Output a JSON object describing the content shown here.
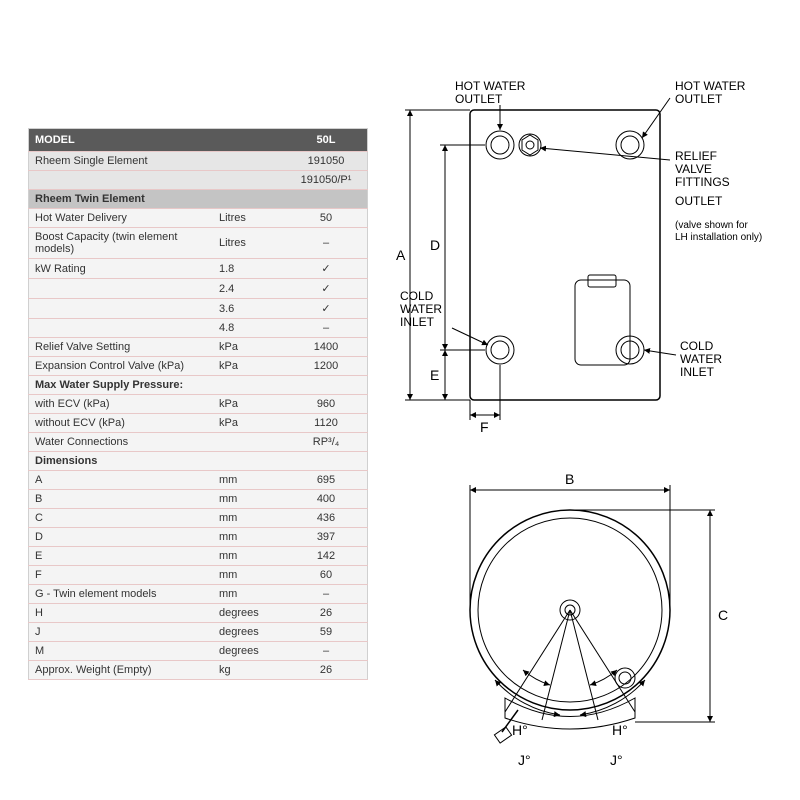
{
  "header": {
    "model": "MODEL",
    "col": "50L"
  },
  "rows": [
    {
      "type": "model",
      "label": "Rheem Single Element",
      "unit": "",
      "val": "191050"
    },
    {
      "type": "model",
      "label": "",
      "unit": "",
      "val": "191050/P¹"
    },
    {
      "type": "subhead",
      "label": "Rheem Twin Element",
      "unit": "",
      "val": ""
    },
    {
      "type": "data",
      "label": "Hot Water Delivery",
      "unit": "Litres",
      "val": "50"
    },
    {
      "type": "data",
      "label": "Boost Capacity (twin element models)",
      "unit": "Litres",
      "val": "–"
    },
    {
      "type": "data",
      "label": "kW Rating",
      "unit": "1.8",
      "val": "✓"
    },
    {
      "type": "data",
      "label": "",
      "unit": "2.4",
      "val": "✓"
    },
    {
      "type": "data",
      "label": "",
      "unit": "3.6",
      "val": "✓"
    },
    {
      "type": "data",
      "label": "",
      "unit": "4.8",
      "val": "–"
    },
    {
      "type": "data",
      "label": "Relief Valve Setting",
      "unit": "kPa",
      "val": "1400"
    },
    {
      "type": "data",
      "label": "Expansion Control Valve (kPa)",
      "unit": "kPa",
      "val": "1200"
    },
    {
      "type": "bold",
      "label": "Max Water Supply Pressure:",
      "unit": "",
      "val": ""
    },
    {
      "type": "data",
      "label": "with ECV (kPa)",
      "unit": "kPa",
      "val": "960"
    },
    {
      "type": "data",
      "label": "without ECV (kPa)",
      "unit": "kPa",
      "val": "1120"
    },
    {
      "type": "data",
      "label": "Water Connections",
      "unit": "",
      "val": "RP³/₄"
    },
    {
      "type": "bold",
      "label": "Dimensions",
      "unit": "",
      "val": ""
    },
    {
      "type": "data",
      "label": "A",
      "unit": "mm",
      "val": "695"
    },
    {
      "type": "data",
      "label": "B",
      "unit": "mm",
      "val": "400"
    },
    {
      "type": "data",
      "label": "C",
      "unit": "mm",
      "val": "436"
    },
    {
      "type": "data",
      "label": "D",
      "unit": "mm",
      "val": "397"
    },
    {
      "type": "data",
      "label": "E",
      "unit": "mm",
      "val": "142"
    },
    {
      "type": "data",
      "label": "F",
      "unit": "mm",
      "val": "60"
    },
    {
      "type": "data",
      "label": "G - Twin element models",
      "unit": "mm",
      "val": "–"
    },
    {
      "type": "data",
      "label": "H",
      "unit": "degrees",
      "val": "26"
    },
    {
      "type": "data",
      "label": "J",
      "unit": "degrees",
      "val": "59"
    },
    {
      "type": "data",
      "label": "M",
      "unit": "degrees",
      "val": "–"
    },
    {
      "type": "data",
      "label": "Approx. Weight (Empty)",
      "unit": "kg",
      "val": "26"
    }
  ],
  "labels": {
    "hot_outlet": "HOT WATER",
    "hot_outlet2": "OUTLET",
    "relief1": "RELIEF",
    "relief2": "VALVE",
    "relief3": "FITTINGS",
    "relief4": "OUTLET",
    "valve_note1": "(valve shown for",
    "valve_note2": "LH installation only)",
    "cold_inlet": "COLD",
    "cold_inlet2": "WATER",
    "cold_inlet3": "INLET",
    "A": "A",
    "B": "B",
    "C": "C",
    "D": "D",
    "E": "E",
    "F": "F",
    "H": "H°",
    "J": "J°"
  },
  "colors": {
    "stroke": "#000000",
    "table_header": "#5a5a5a",
    "table_sub": "#c4c4c4",
    "table_bg": "#f4f4f4",
    "row_border": "#e8c8c8"
  }
}
